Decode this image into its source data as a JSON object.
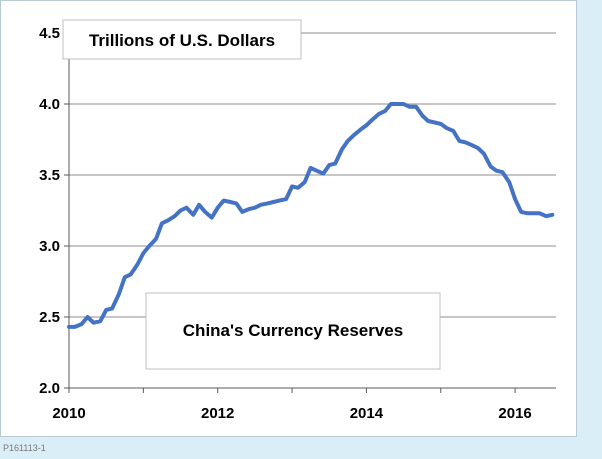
{
  "chart_data": {
    "type": "line",
    "title": "China's Currency Reserves",
    "ylabel": "Trillions of U.S. Dollars",
    "xlabel": "",
    "xlim": [
      2010,
      2016.55
    ],
    "ylim": [
      2.0,
      4.5
    ],
    "xticks": [
      2010,
      2012,
      2014,
      2016
    ],
    "yticks": [
      2.0,
      2.5,
      3.0,
      3.5,
      4.0,
      4.5
    ],
    "ytick_labels": [
      "2.0",
      "2.5",
      "3.0",
      "3.5",
      "4.0",
      "4.5"
    ],
    "xtick_labels": [
      "2010",
      "2012",
      "2014",
      "2016"
    ],
    "grid": "horizontal",
    "line_color": "#4472c4",
    "series": [
      {
        "x": [
          2010.0,
          2010.08,
          2010.17,
          2010.25,
          2010.33,
          2010.42,
          2010.5,
          2010.58,
          2010.67,
          2010.75,
          2010.83,
          2010.92,
          2011.0,
          2011.08,
          2011.17,
          2011.25,
          2011.33,
          2011.42,
          2011.5,
          2011.58,
          2011.67,
          2011.75,
          2011.83,
          2011.92,
          2012.0,
          2012.08,
          2012.17,
          2012.25,
          2012.33,
          2012.42,
          2012.5,
          2012.58,
          2012.67,
          2012.75,
          2012.83,
          2012.92,
          2013.0,
          2013.08,
          2013.17,
          2013.25,
          2013.33,
          2013.42,
          2013.5,
          2013.58,
          2013.67,
          2013.75,
          2013.83,
          2013.92,
          2014.0,
          2014.08,
          2014.17,
          2014.25,
          2014.33,
          2014.42,
          2014.5,
          2014.58,
          2014.67,
          2014.75,
          2014.83,
          2014.92,
          2015.0,
          2015.08,
          2015.17,
          2015.25,
          2015.33,
          2015.42,
          2015.5,
          2015.58,
          2015.67,
          2015.75,
          2015.83,
          2015.92,
          2016.0,
          2016.08,
          2016.17,
          2016.25,
          2016.33,
          2016.42,
          2016.5
        ],
        "values": [
          2.43,
          2.43,
          2.45,
          2.5,
          2.46,
          2.47,
          2.55,
          2.56,
          2.66,
          2.78,
          2.8,
          2.87,
          2.95,
          3.0,
          3.05,
          3.16,
          3.18,
          3.21,
          3.25,
          3.27,
          3.22,
          3.29,
          3.24,
          3.2,
          3.27,
          3.32,
          3.31,
          3.3,
          3.24,
          3.26,
          3.27,
          3.29,
          3.3,
          3.31,
          3.32,
          3.33,
          3.42,
          3.41,
          3.45,
          3.55,
          3.53,
          3.51,
          3.57,
          3.58,
          3.68,
          3.74,
          3.78,
          3.82,
          3.85,
          3.89,
          3.93,
          3.95,
          4.0,
          4.0,
          4.0,
          3.98,
          3.98,
          3.92,
          3.88,
          3.87,
          3.86,
          3.83,
          3.81,
          3.74,
          3.73,
          3.71,
          3.69,
          3.65,
          3.56,
          3.53,
          3.52,
          3.45,
          3.33,
          3.24,
          3.23,
          3.23,
          3.23,
          3.21,
          3.22
        ]
      }
    ]
  },
  "footnote": "P161113-1"
}
